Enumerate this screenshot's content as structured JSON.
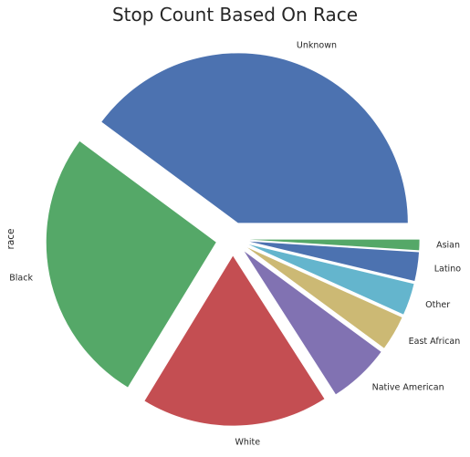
{
  "chart_data": {
    "type": "pie",
    "title": "Stop Count Based On Race",
    "ylabel": "race",
    "categories": [
      "Unknown",
      "Black",
      "White",
      "Native American",
      "East African",
      "Other",
      "Latino",
      "Asian"
    ],
    "values": [
      39.5,
      26.2,
      17.6,
      5.8,
      3.3,
      3.0,
      2.7,
      1.0
    ],
    "colors": [
      "#4c72b0",
      "#55a868",
      "#c44e52",
      "#8172b2",
      "#ccb974",
      "#64b5cd",
      "#4c72b0",
      "#55a868"
    ],
    "exploded": true,
    "start_angle_deg": 0,
    "direction": "counterclockwise"
  }
}
